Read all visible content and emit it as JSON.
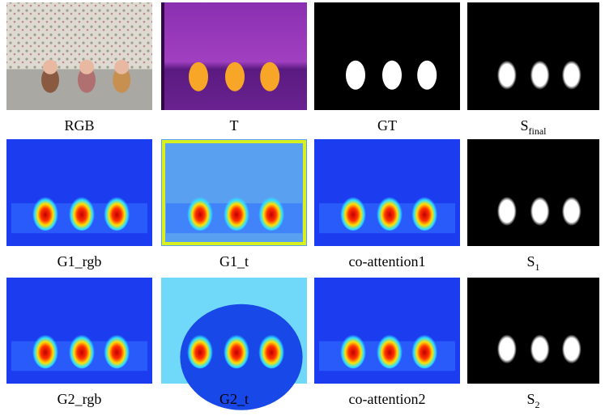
{
  "figure": {
    "rows": [
      [
        {
          "label": "RGB"
        },
        {
          "label": "T"
        },
        {
          "label": "GT"
        },
        {
          "label": "S",
          "subscript": "final"
        }
      ],
      [
        {
          "label": "G1_rgb"
        },
        {
          "label": "G1_t"
        },
        {
          "label": "co-attention1"
        },
        {
          "label": "S",
          "subscript": "1"
        }
      ],
      [
        {
          "label": "G2_rgb"
        },
        {
          "label": "G2_t"
        },
        {
          "label": "co-attention2"
        },
        {
          "label": "S",
          "subscript": "2"
        }
      ]
    ]
  }
}
